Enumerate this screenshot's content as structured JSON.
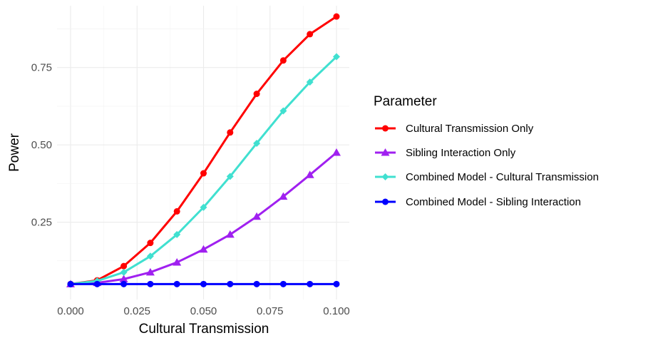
{
  "chart_data": {
    "type": "line",
    "xlabel": "Cultural Transmission",
    "ylabel": "Power",
    "x": [
      0.0,
      0.01,
      0.02,
      0.03,
      0.04,
      0.05,
      0.06,
      0.07,
      0.08,
      0.09,
      0.1
    ],
    "xlim": [
      0.0,
      0.1
    ],
    "ylim": [
      0.0,
      0.95
    ],
    "x_ticks": [
      0.0,
      0.025,
      0.05,
      0.075,
      0.1
    ],
    "x_tick_labels": [
      "0.000",
      "0.025",
      "0.050",
      "0.075",
      "0.100"
    ],
    "y_ticks": [
      0.25,
      0.5,
      0.75
    ],
    "y_tick_labels": [
      "0.25",
      "0.50",
      "0.75"
    ],
    "grid": true,
    "legend": {
      "title": "Parameter",
      "placement": "right"
    },
    "series": [
      {
        "name": "Cultural Transmission Only",
        "color": "#ff0000",
        "marker": "circle",
        "values": [
          0.05,
          0.062,
          0.108,
          0.183,
          0.285,
          0.408,
          0.54,
          0.665,
          0.773,
          0.858,
          0.915
        ]
      },
      {
        "name": "Sibling Interaction Only",
        "color": "#a020f0",
        "marker": "triangle",
        "values": [
          0.05,
          0.054,
          0.066,
          0.088,
          0.12,
          0.162,
          0.21,
          0.268,
          0.333,
          0.403,
          0.475
        ]
      },
      {
        "name": "Combined Model - Cultural Transmission",
        "color": "#40e0d0",
        "marker": "diamond",
        "values": [
          0.05,
          0.06,
          0.088,
          0.14,
          0.21,
          0.298,
          0.398,
          0.505,
          0.61,
          0.703,
          0.785
        ]
      },
      {
        "name": "Combined Model - Sibling Interaction",
        "color": "#0000ff",
        "marker": "circle",
        "values": [
          0.05,
          0.05,
          0.05,
          0.05,
          0.05,
          0.05,
          0.05,
          0.05,
          0.05,
          0.05,
          0.05
        ]
      }
    ]
  }
}
